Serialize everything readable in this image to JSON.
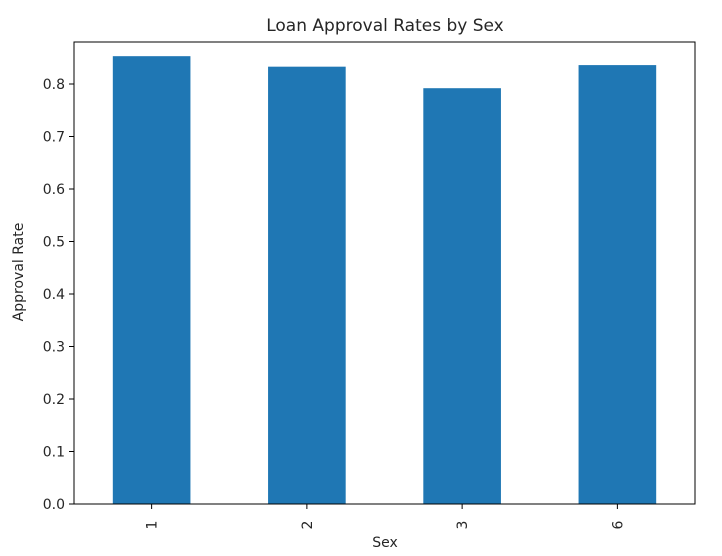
{
  "chart_data": {
    "type": "bar",
    "title": "Loan Approval Rates by Sex",
    "xlabel": "Sex",
    "ylabel": "Approval Rate",
    "categories": [
      "1",
      "2",
      "3",
      "6"
    ],
    "values": [
      0.853,
      0.833,
      0.792,
      0.836
    ],
    "ylim": [
      0,
      0.88
    ],
    "yticks": [
      "0.0",
      "0.1",
      "0.2",
      "0.3",
      "0.4",
      "0.5",
      "0.6",
      "0.7",
      "0.8"
    ],
    "ytick_values": [
      0,
      0.1,
      0.2,
      0.3,
      0.4,
      0.5,
      0.6,
      0.7,
      0.8
    ],
    "bar_color": "#1f77b4",
    "grid": false,
    "legend": "none"
  }
}
